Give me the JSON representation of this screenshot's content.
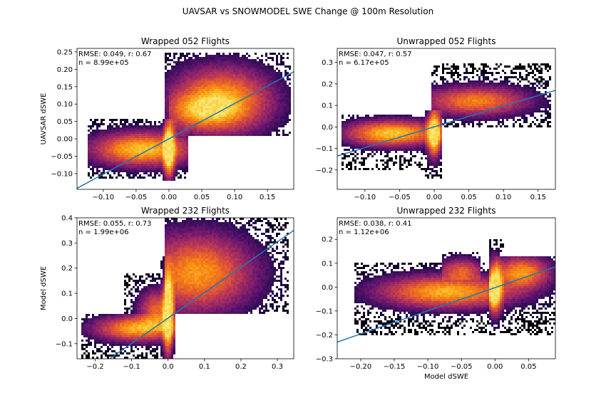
{
  "figure": {
    "suptitle": "UAVSAR vs SNOWMODEL SWE Change @ 100m Resolution"
  },
  "chart_data": [
    {
      "type": "heatmap",
      "title": "Wrapped 052 Flights",
      "xlabel": "",
      "ylabel": "UAVSAR dSWE",
      "xlim": [
        -0.14,
        0.19
      ],
      "ylim": [
        -0.145,
        0.26
      ],
      "xticks": [
        -0.1,
        -0.05,
        0.0,
        0.05,
        0.1,
        0.15
      ],
      "xtick_labels": [
        "−0.10",
        "−0.05",
        "0.00",
        "0.05",
        "0.10",
        "0.15"
      ],
      "yticks": [
        -0.1,
        -0.05,
        0.0,
        0.05,
        0.1,
        0.15,
        0.2,
        0.25
      ],
      "ytick_labels": [
        "−0.10",
        "−0.05",
        "0.00",
        "0.05",
        "0.10",
        "0.15",
        "0.20",
        "0.25"
      ],
      "stats_line1": "RMSE: 0.049, r: 0.67",
      "stats_line2": "n = 8.99e+05",
      "fit_line": {
        "x": [
          -0.14,
          0.19
        ],
        "y": [
          -0.142,
          0.193
        ]
      },
      "colormap": "inferno",
      "clusters": [
        {
          "cx": -0.04,
          "cy": -0.03,
          "sx": 0.045,
          "sy": 0.028,
          "w": 1.0,
          "xmin": -0.125,
          "xmax": 0.028,
          "ymin": -0.115,
          "ymax": 0.055
        },
        {
          "cx": 0.0,
          "cy": -0.03,
          "sx": 0.005,
          "sy": 0.045,
          "w": 1.6,
          "xmin": -0.01,
          "xmax": 0.012,
          "ymin": -0.12,
          "ymax": 0.055
        },
        {
          "cx": 0.08,
          "cy": 0.11,
          "sx": 0.045,
          "sy": 0.055,
          "w": 0.9,
          "xmin": -0.005,
          "xmax": 0.185,
          "ymin": 0.01,
          "ymax": 0.25
        },
        {
          "cx": 0.05,
          "cy": 0.08,
          "sx": 0.035,
          "sy": 0.03,
          "w": 0.6,
          "xmin": 0.0,
          "xmax": 0.16,
          "ymin": 0.01,
          "ymax": 0.2
        }
      ]
    },
    {
      "type": "heatmap",
      "title": "Unwrapped 052 Flights",
      "xlabel": "",
      "ylabel": "",
      "xlim": [
        -0.14,
        0.175
      ],
      "ylim": [
        -0.29,
        0.365
      ],
      "xticks": [
        -0.1,
        -0.05,
        0.0,
        0.05,
        0.1,
        0.15
      ],
      "xtick_labels": [
        "−0.10",
        "−0.05",
        "0.00",
        "0.05",
        "0.10",
        "0.15"
      ],
      "yticks": [
        -0.2,
        -0.1,
        0.0,
        0.1,
        0.2,
        0.3
      ],
      "ytick_labels": [
        "−0.2",
        "−0.1",
        "0.0",
        "0.1",
        "0.2",
        "0.3"
      ],
      "stats_line1": "RMSE: 0.047, r: 0.57",
      "stats_line2": "n = 6.17e+05",
      "fit_line": {
        "x": [
          -0.14,
          0.175
        ],
        "y": [
          -0.135,
          0.17
        ]
      },
      "colormap": "inferno",
      "clusters": [
        {
          "cx": -0.06,
          "cy": -0.03,
          "sx": 0.04,
          "sy": 0.035,
          "w": 1.0,
          "xmin": -0.135,
          "xmax": 0.01,
          "ymin": -0.2,
          "ymax": 0.06
        },
        {
          "cx": 0.0,
          "cy": -0.03,
          "sx": 0.006,
          "sy": 0.06,
          "w": 1.5,
          "xmin": -0.012,
          "xmax": 0.012,
          "ymin": -0.24,
          "ymax": 0.08
        },
        {
          "cx": 0.06,
          "cy": 0.12,
          "sx": 0.045,
          "sy": 0.04,
          "w": 0.7,
          "xmin": -0.005,
          "xmax": 0.17,
          "ymin": 0.0,
          "ymax": 0.3
        }
      ]
    },
    {
      "type": "heatmap",
      "title": "Wrapped 232 Flights",
      "xlabel": "",
      "ylabel": "Model dSWE",
      "xlim": [
        -0.25,
        0.345
      ],
      "ylim": [
        -0.16,
        0.4
      ],
      "xticks": [
        -0.2,
        -0.1,
        0.0,
        0.1,
        0.2,
        0.3
      ],
      "xtick_labels": [
        "−0.2",
        "−0.1",
        "0.0",
        "0.1",
        "0.2",
        "0.3"
      ],
      "yticks": [
        -0.1,
        0.0,
        0.1,
        0.2,
        0.3,
        0.4
      ],
      "ytick_labels": [
        "−0.1",
        "0.0",
        "0.1",
        "0.2",
        "0.3",
        "0.4"
      ],
      "stats_line1": "RMSE: 0.055, r: 0.73",
      "stats_line2": "n = 1.99e+06",
      "fit_line": {
        "x": [
          -0.16,
          0.345
        ],
        "y": [
          -0.16,
          0.35
        ]
      },
      "colormap": "inferno",
      "clusters": [
        {
          "cx": -0.08,
          "cy": -0.04,
          "sx": 0.07,
          "sy": 0.03,
          "w": 0.9,
          "xmin": -0.24,
          "xmax": 0.02,
          "ymin": -0.16,
          "ymax": 0.02
        },
        {
          "cx": 0.0,
          "cy": 0.02,
          "sx": 0.008,
          "sy": 0.09,
          "w": 1.6,
          "xmin": -0.02,
          "xmax": 0.02,
          "ymin": -0.16,
          "ymax": 0.25
        },
        {
          "cx": 0.08,
          "cy": 0.18,
          "sx": 0.09,
          "sy": 0.09,
          "w": 0.8,
          "xmin": -0.01,
          "xmax": 0.33,
          "ymin": 0.02,
          "ymax": 0.4
        },
        {
          "cx": -0.03,
          "cy": 0.03,
          "sx": 0.03,
          "sy": 0.05,
          "w": 0.6,
          "xmin": -0.12,
          "xmax": 0.02,
          "ymin": -0.05,
          "ymax": 0.18
        }
      ]
    },
    {
      "type": "heatmap",
      "title": "Unwrapped 232 Flights",
      "xlabel": "Model dSWE",
      "ylabel": "",
      "xlim": [
        -0.235,
        0.09
      ],
      "ylim": [
        -0.3,
        0.29
      ],
      "xticks": [
        -0.2,
        -0.15,
        -0.1,
        -0.05,
        0.0,
        0.05
      ],
      "xtick_labels": [
        "−0.20",
        "−0.15",
        "−0.10",
        "−0.05",
        "0.00",
        "0.05"
      ],
      "yticks": [
        -0.3,
        -0.2,
        -0.1,
        0.0,
        0.1,
        0.2
      ],
      "ytick_labels": [
        "−0.3",
        "−0.2",
        "−0.1",
        "0.0",
        "0.1",
        "0.2"
      ],
      "stats_line1": "RMSE: 0.038, r: 0.41",
      "stats_line2": "n = 1.12e+06",
      "fit_line": {
        "x": [
          -0.235,
          0.09
        ],
        "y": [
          -0.23,
          0.085
        ]
      },
      "colormap": "inferno",
      "clusters": [
        {
          "cx": -0.07,
          "cy": -0.02,
          "sx": 0.06,
          "sy": 0.04,
          "w": 0.9,
          "xmin": -0.21,
          "xmax": 0.09,
          "ymin": -0.2,
          "ymax": 0.1
        },
        {
          "cx": 0.0,
          "cy": 0.0,
          "sx": 0.006,
          "sy": 0.06,
          "w": 1.6,
          "xmin": -0.01,
          "xmax": 0.012,
          "ymin": -0.2,
          "ymax": 0.2
        },
        {
          "cx": 0.04,
          "cy": 0.06,
          "sx": 0.025,
          "sy": 0.04,
          "w": 0.8,
          "xmin": 0.0,
          "xmax": 0.09,
          "ymin": -0.05,
          "ymax": 0.13
        },
        {
          "cx": -0.05,
          "cy": 0.07,
          "sx": 0.02,
          "sy": 0.03,
          "w": 0.5,
          "xmin": -0.08,
          "xmax": -0.02,
          "ymin": 0.03,
          "ymax": 0.15
        }
      ]
    }
  ]
}
